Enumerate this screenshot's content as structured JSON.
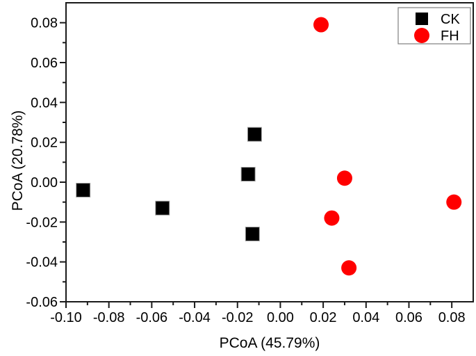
{
  "figure": {
    "background": "#ffffff",
    "frame_color": "#1a1a1a"
  },
  "chart_data": {
    "type": "scatter",
    "title": "",
    "xlabel": "PCoA (45.79%)",
    "ylabel": "PCoA (20.78%)",
    "xlim": [
      -0.1,
      0.09
    ],
    "ylim": [
      -0.06,
      0.09
    ],
    "grid": false,
    "x_ticks": {
      "values": [
        -0.1,
        -0.08,
        -0.06,
        -0.04,
        -0.02,
        0.0,
        0.02,
        0.04,
        0.06,
        0.08
      ],
      "labels": [
        "-0.10",
        "-0.08",
        "-0.06",
        "-0.04",
        "-0.02",
        "0.00",
        "0.02",
        "0.04",
        "0.06",
        "0.08"
      ]
    },
    "x_minor_ticks": [
      -0.09,
      -0.07,
      -0.05,
      -0.03,
      -0.01,
      0.01,
      0.03,
      0.05,
      0.07
    ],
    "y_ticks": {
      "values": [
        0.08,
        0.06,
        0.04,
        0.02,
        0.0,
        -0.02,
        -0.04,
        -0.06
      ],
      "labels": [
        "0.08",
        "0.06",
        "0.04",
        "0.02",
        "0.00",
        "-0.02",
        "-0.04",
        "-0.06"
      ]
    },
    "y_minor_ticks": [
      0.07,
      0.05,
      0.03,
      0.01,
      -0.01,
      -0.03,
      -0.05
    ],
    "legend": {
      "position": "top-right",
      "border_color": "#7f7f7f",
      "entries": [
        {
          "label": "CK",
          "marker": "square",
          "color": "#000000"
        },
        {
          "label": "FH",
          "marker": "circle",
          "color": "#ff0000"
        }
      ]
    },
    "series": [
      {
        "name": "CK",
        "marker": "square",
        "color": "#000000",
        "points": [
          [
            -0.092,
            -0.004
          ],
          [
            -0.055,
            -0.013
          ],
          [
            -0.012,
            0.024
          ],
          [
            -0.015,
            0.004
          ],
          [
            -0.013,
            -0.026
          ]
        ]
      },
      {
        "name": "FH",
        "marker": "circle",
        "color": "#ff0000",
        "points": [
          [
            0.019,
            0.079
          ],
          [
            0.03,
            0.002
          ],
          [
            0.024,
            -0.018
          ],
          [
            0.032,
            -0.043
          ],
          [
            0.081,
            -0.01
          ]
        ]
      }
    ]
  }
}
